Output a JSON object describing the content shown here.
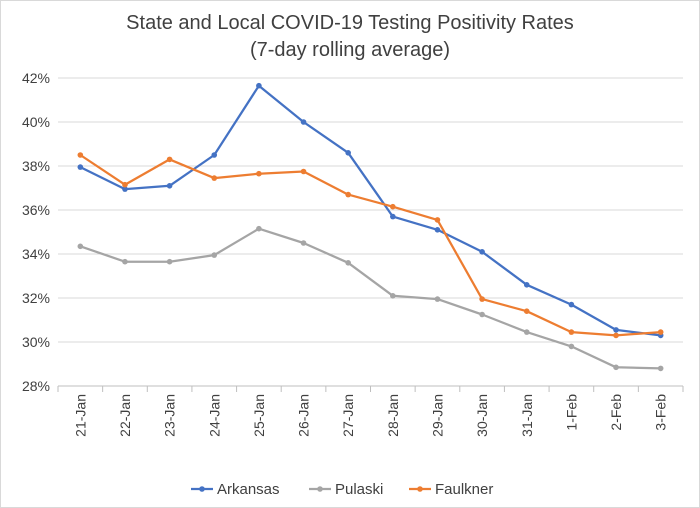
{
  "chart_data": {
    "type": "line",
    "title": "State and Local COVID-19 Testing Positivity Rates",
    "subtitle": "(7-day rolling average)",
    "xlabel": "",
    "ylabel": "",
    "categories": [
      "21-Jan",
      "22-Jan",
      "23-Jan",
      "24-Jan",
      "25-Jan",
      "26-Jan",
      "27-Jan",
      "28-Jan",
      "29-Jan",
      "30-Jan",
      "31-Jan",
      "1-Feb",
      "2-Feb",
      "3-Feb"
    ],
    "ylim": [
      28,
      42
    ],
    "yticks": [
      28,
      30,
      32,
      34,
      36,
      38,
      40,
      42
    ],
    "ytick_labels": [
      "28%",
      "30%",
      "32%",
      "34%",
      "36%",
      "38%",
      "40%",
      "42%"
    ],
    "grid": true,
    "legend_position": "bottom",
    "series": [
      {
        "name": "Arkansas",
        "color": "#4472C4",
        "values": [
          37.95,
          36.95,
          37.1,
          38.5,
          41.65,
          40.0,
          38.6,
          35.7,
          35.1,
          34.1,
          32.6,
          31.7,
          30.55,
          30.3
        ]
      },
      {
        "name": "Pulaski",
        "color": "#A5A5A5",
        "values": [
          34.35,
          33.65,
          33.65,
          33.95,
          35.15,
          34.5,
          33.6,
          32.1,
          31.95,
          31.25,
          30.45,
          29.8,
          28.85,
          28.8
        ]
      },
      {
        "name": "Faulkner",
        "color": "#ED7D31",
        "values": [
          38.5,
          37.15,
          38.3,
          37.45,
          37.65,
          37.75,
          36.7,
          36.15,
          35.55,
          31.95,
          31.4,
          30.45,
          30.3,
          30.45
        ]
      }
    ]
  }
}
